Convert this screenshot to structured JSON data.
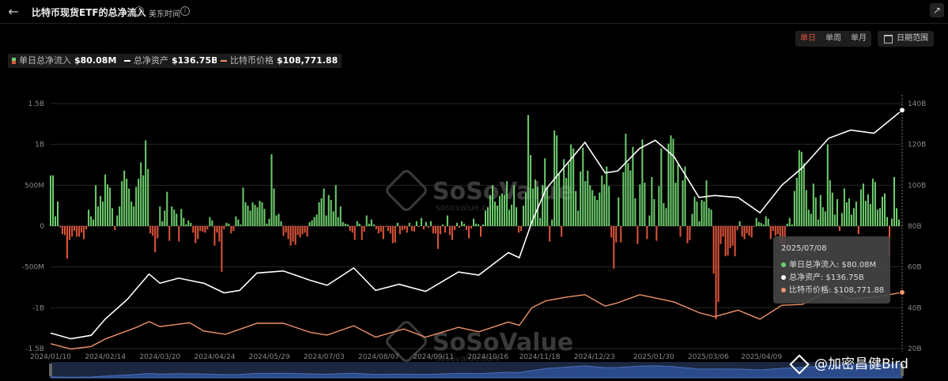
{
  "header": {
    "title": "比特币现货ETF的总净流入",
    "timezone": "美东时间",
    "info_icon": "info-circle-icon",
    "back_icon": "arrow-left-icon",
    "share_icon": "share-icon"
  },
  "controls": {
    "period_tabs": [
      "单日",
      "单周",
      "单月"
    ],
    "active_period": "单日",
    "date_range_label": "日期范围",
    "date_range_icon": "calendar-icon"
  },
  "legend": {
    "flow_name": "单日总净流入",
    "flow_value": "$80.08M",
    "assets_name": "总净资产",
    "assets_value": "$136.75B",
    "price_name": "比特币价格",
    "price_value": "$108,771.88"
  },
  "tooltip": {
    "date": "2025/07/08",
    "flow": "单日总净流入: $80.08M",
    "assets": "总净资产: $136.75B",
    "price": "比特币价格: $108,771.88"
  },
  "watermark": {
    "brand": "SoSoValue",
    "site": "sosovalue.com"
  },
  "credit": {
    "text": "@加密昌健Bird"
  },
  "colors": {
    "inflow": "#6ecf6e",
    "outflow": "#e0553b",
    "assets": "#ffffff",
    "price": "#f0936b",
    "grid": "#262626",
    "navigator": "#2b4a8a"
  },
  "chart_data": {
    "type": "bar",
    "x_range": [
      "2024-01-10",
      "2025-07-08"
    ],
    "x_ticks": [
      "2024/01/10",
      "2024/02/14",
      "2024/03/20",
      "2024/04/24",
      "2024/05/29",
      "2024/07/03",
      "2024/08/07",
      "2024/09/11",
      "2024/10/16",
      "2024/11/18",
      "2024/12/23",
      "2025/01/30",
      "2025/03/06",
      "2025/04/09"
    ],
    "y_left": {
      "unit": "USD",
      "range": [
        -1500000000,
        1500000000
      ],
      "ticks": [
        "-1.5B",
        "-1B",
        "-500M",
        "0",
        "500M",
        "1B",
        "1.5B"
      ]
    },
    "y_right": {
      "unit": "USD",
      "range": [
        20000000000,
        140000000000
      ],
      "ticks": [
        "20B",
        "40B",
        "60B",
        "80B",
        "100B",
        "120B",
        "140B"
      ]
    },
    "grid": true,
    "legend_position": "top-left",
    "series": [
      {
        "name": "单日总净流入",
        "type": "bar",
        "axis": "left",
        "unit": "M USD",
        "values": [
          620,
          620,
          120,
          300,
          -15,
          -100,
          -110,
          -400,
          -170,
          -130,
          -60,
          -130,
          -130,
          -80,
          -160,
          -40,
          200,
          120,
          80,
          500,
          240,
          370,
          300,
          630,
          510,
          470,
          220,
          -50,
          130,
          240,
          550,
          680,
          580,
          460,
          300,
          240,
          480,
          580,
          780,
          620,
          1050,
          700,
          -90,
          -120,
          -320,
          -150,
          240,
          60,
          190,
          420,
          -180,
          240,
          200,
          150,
          -190,
          210,
          100,
          20,
          70,
          40,
          -80,
          -210,
          -160,
          -60,
          -70,
          -80,
          -40,
          110,
          70,
          -240,
          -80,
          -190,
          -560,
          -40,
          40,
          30,
          -90,
          -60,
          120,
          80,
          20,
          470,
          290,
          250,
          190,
          290,
          260,
          230,
          310,
          290,
          210,
          30,
          90,
          880,
          460,
          130,
          150,
          60,
          -120,
          -80,
          -160,
          -240,
          -190,
          -230,
          -110,
          -140,
          -100,
          -80,
          -130,
          50,
          70,
          110,
          140,
          290,
          340,
          460,
          130,
          380,
          320,
          180,
          500,
          110,
          240,
          50,
          30,
          20,
          -60,
          -80,
          -170,
          60,
          30,
          -170,
          -70,
          130,
          30,
          80,
          20,
          -40,
          -90,
          -70,
          -160,
          -10,
          -60,
          -90,
          -210,
          -200,
          40,
          -100,
          -50,
          -40,
          -80,
          40,
          -60,
          -70,
          60,
          -10,
          100,
          -40,
          50,
          -20,
          60,
          -90,
          -90,
          -280,
          -100,
          20,
          -80,
          130,
          -110,
          -170,
          -50,
          40,
          -20,
          60,
          30,
          -50,
          -150,
          -30,
          90,
          30,
          20,
          -130,
          20,
          190,
          230,
          380,
          500,
          300,
          250,
          370,
          400,
          380,
          550,
          200,
          260,
          500,
          230,
          -80,
          -60,
          250,
          410,
          1360,
          870,
          460,
          570,
          480,
          100,
          500,
          830,
          480,
          -190,
          80,
          1170,
          1110,
          640,
          -130,
          820,
          590,
          770,
          1000,
          950,
          430,
          190,
          670,
          960,
          550,
          680,
          500,
          440,
          370,
          320,
          410,
          620,
          510,
          730,
          490,
          -140,
          -520,
          -200,
          350,
          -200,
          660,
          1130,
          770,
          680,
          970,
          340,
          -220,
          510,
          1060,
          530,
          -160,
          130,
          600,
          330,
          -180,
          490,
          950,
          280,
          220,
          1010,
          1110,
          1070,
          530,
          760,
          -130,
          560,
          730,
          -210,
          -170,
          150,
          360,
          300,
          60,
          320,
          300,
          560,
          220,
          200,
          -580,
          -1140,
          -930,
          -220,
          -130,
          -370,
          -360,
          -270,
          -240,
          -370,
          -50,
          60,
          -130,
          -160,
          -90,
          -120,
          -140,
          -10,
          100,
          50,
          40,
          20,
          120,
          90,
          -160,
          -60,
          -120,
          -100,
          -210,
          -250,
          -310,
          30,
          100,
          20,
          430,
          590,
          930,
          910,
          770,
          440,
          200,
          150,
          520,
          350,
          80,
          380,
          230,
          180,
          1000,
          560,
          410,
          140,
          330,
          -60,
          160,
          460,
          290,
          340,
          140,
          220,
          300,
          -100,
          450,
          520,
          310,
          390,
          270,
          580,
          540,
          200,
          220,
          360,
          400,
          110,
          -350,
          90,
          600,
          220,
          80
        ]
      },
      {
        "name": "总净资产",
        "type": "line",
        "axis": "right",
        "unit": "B USD",
        "points": [
          [
            "2024-01-10",
            27.6
          ],
          [
            "2024-01-23",
            24.8
          ],
          [
            "2024-02-05",
            26.5
          ],
          [
            "2024-02-14",
            34.5
          ],
          [
            "2024-02-28",
            44.0
          ],
          [
            "2024-03-13",
            56.5
          ],
          [
            "2024-03-20",
            52.0
          ],
          [
            "2024-04-01",
            54.5
          ],
          [
            "2024-04-17",
            52.0
          ],
          [
            "2024-04-30",
            47.3
          ],
          [
            "2024-05-10",
            48.5
          ],
          [
            "2024-05-21",
            57.0
          ],
          [
            "2024-06-07",
            58.0
          ],
          [
            "2024-06-24",
            53.5
          ],
          [
            "2024-07-05",
            51.0
          ],
          [
            "2024-07-22",
            59.5
          ],
          [
            "2024-08-05",
            48.5
          ],
          [
            "2024-08-20",
            51.5
          ],
          [
            "2024-09-06",
            48.0
          ],
          [
            "2024-09-27",
            57.5
          ],
          [
            "2024-10-10",
            56.0
          ],
          [
            "2024-10-29",
            67.0
          ],
          [
            "2024-11-05",
            64.5
          ],
          [
            "2024-11-13",
            82.0
          ],
          [
            "2024-11-22",
            98.0
          ],
          [
            "2024-12-05",
            110.0
          ],
          [
            "2024-12-17",
            121.0
          ],
          [
            "2024-12-30",
            106.0
          ],
          [
            "2025-01-07",
            107.0
          ],
          [
            "2025-01-21",
            118.0
          ],
          [
            "2025-01-31",
            122.0
          ],
          [
            "2025-02-12",
            114.0
          ],
          [
            "2025-02-28",
            94.0
          ],
          [
            "2025-03-10",
            95.0
          ],
          [
            "2025-03-25",
            94.0
          ],
          [
            "2025-04-08",
            86.5
          ],
          [
            "2025-04-22",
            100.0
          ],
          [
            "2025-05-05",
            108.5
          ],
          [
            "2025-05-22",
            123.0
          ],
          [
            "2025-06-05",
            127.0
          ],
          [
            "2025-06-20",
            125.5
          ],
          [
            "2025-07-08",
            136.75
          ]
        ]
      },
      {
        "name": "比特币价格",
        "type": "line",
        "axis": "right",
        "unit": "USD",
        "points": [
          [
            "2024-01-10",
            46000
          ],
          [
            "2024-01-23",
            39500
          ],
          [
            "2024-02-05",
            42600
          ],
          [
            "2024-02-14",
            51800
          ],
          [
            "2024-03-05",
            66000
          ],
          [
            "2024-03-13",
            73000
          ],
          [
            "2024-03-20",
            67000
          ],
          [
            "2024-04-08",
            71600
          ],
          [
            "2024-04-17",
            61500
          ],
          [
            "2024-05-01",
            57500
          ],
          [
            "2024-05-21",
            71000
          ],
          [
            "2024-06-07",
            71000
          ],
          [
            "2024-06-24",
            60000
          ],
          [
            "2024-07-05",
            56500
          ],
          [
            "2024-07-22",
            68000
          ],
          [
            "2024-08-05",
            54000
          ],
          [
            "2024-08-23",
            64000
          ],
          [
            "2024-09-06",
            54000
          ],
          [
            "2024-09-27",
            66000
          ],
          [
            "2024-10-10",
            60500
          ],
          [
            "2024-10-29",
            72500
          ],
          [
            "2024-11-05",
            68500
          ],
          [
            "2024-11-13",
            90000
          ],
          [
            "2024-11-22",
            98500
          ],
          [
            "2024-12-05",
            103000
          ],
          [
            "2024-12-17",
            106000
          ],
          [
            "2024-12-30",
            92000
          ],
          [
            "2025-01-07",
            96000
          ],
          [
            "2025-01-21",
            106000
          ],
          [
            "2025-01-31",
            102000
          ],
          [
            "2025-02-12",
            97000
          ],
          [
            "2025-02-28",
            84000
          ],
          [
            "2025-03-10",
            79000
          ],
          [
            "2025-03-25",
            87000
          ],
          [
            "2025-04-08",
            76000
          ],
          [
            "2025-04-22",
            93000
          ],
          [
            "2025-05-05",
            94000
          ],
          [
            "2025-05-22",
            111000
          ],
          [
            "2025-06-05",
            101000
          ],
          [
            "2025-06-20",
            103000
          ],
          [
            "2025-07-08",
            108771.88
          ]
        ]
      }
    ]
  }
}
